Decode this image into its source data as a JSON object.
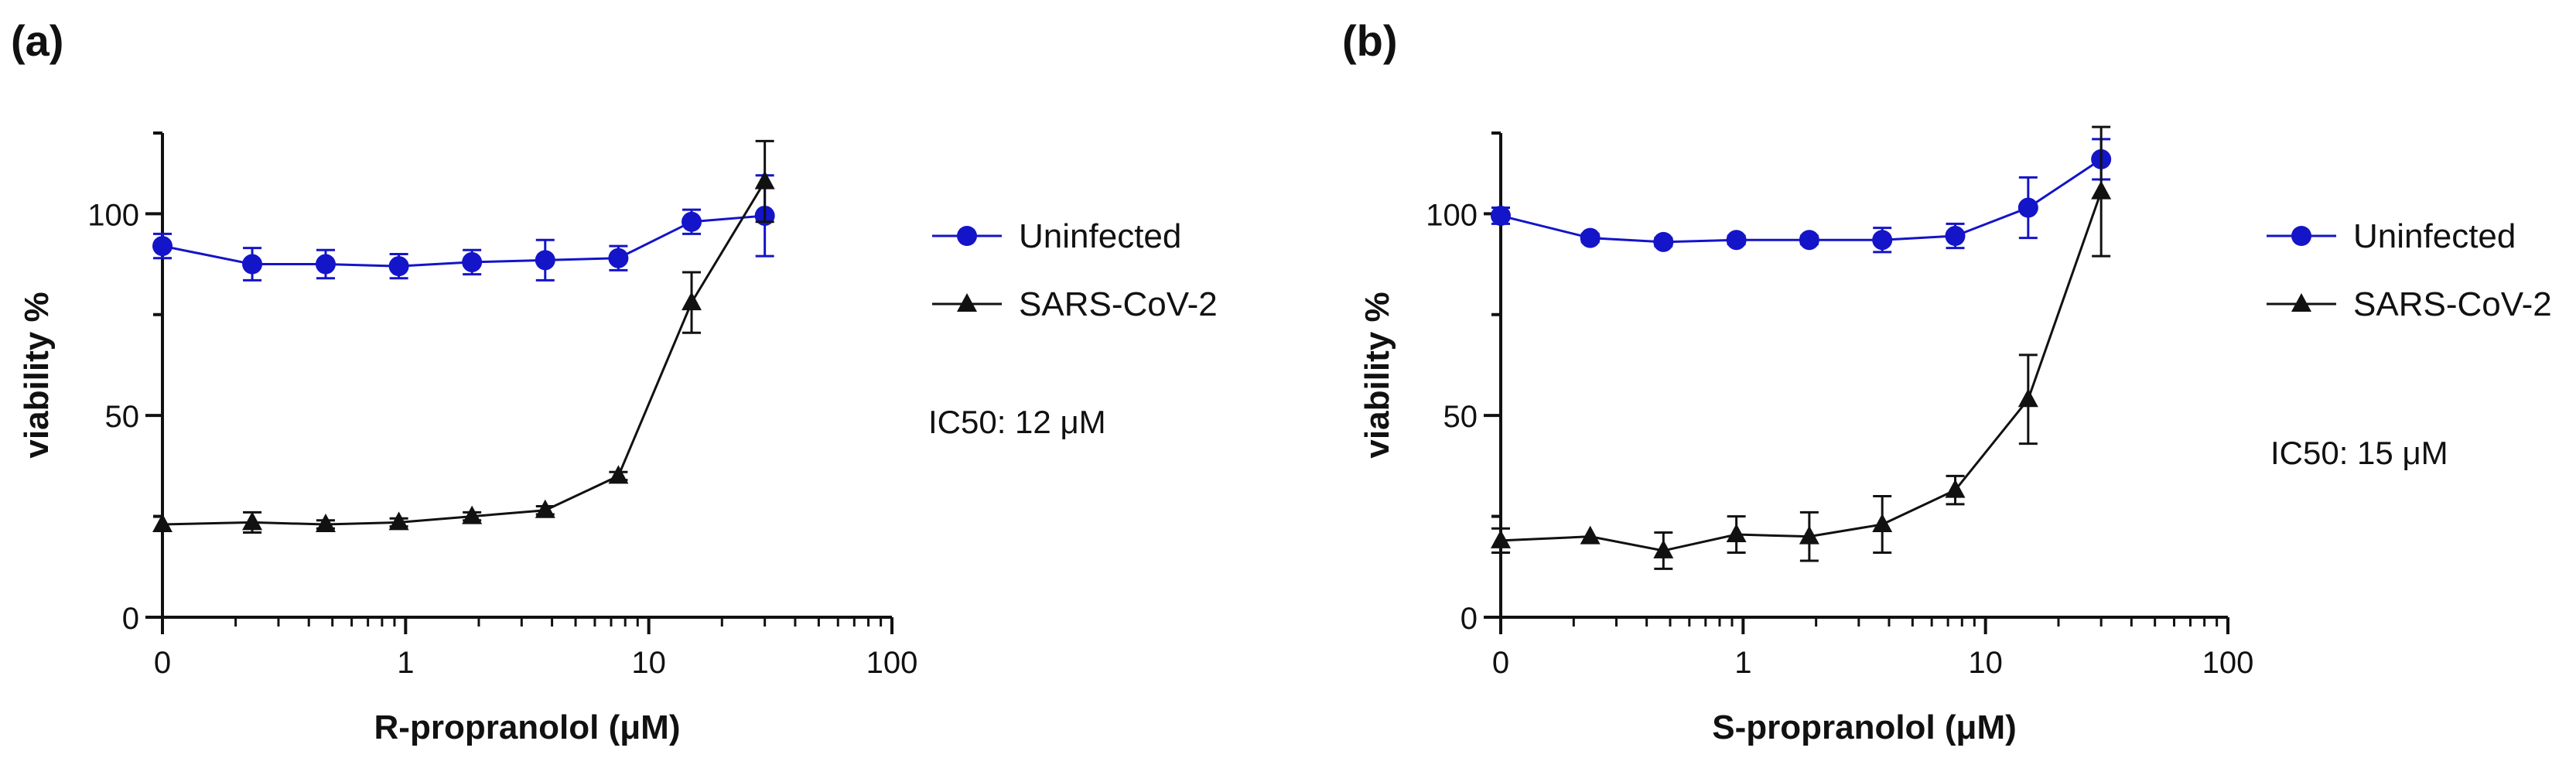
{
  "figure": {
    "panels": [
      "(a)",
      "(b)"
    ]
  },
  "chart_data": [
    {
      "panel_label": "(a)",
      "type": "line",
      "xlabel": "R-propranolol (μM)",
      "ylabel": "viability %",
      "x_ticks": [
        "0",
        "1",
        "10",
        "100"
      ],
      "y_ticks": [
        "0",
        "50",
        "100"
      ],
      "xlim_log10": [
        -1,
        2
      ],
      "ylim": [
        0,
        120
      ],
      "annotation": "IC50: 12 μM",
      "x": [
        0.1,
        0.234,
        0.469,
        0.938,
        1.875,
        3.75,
        7.5,
        15,
        30
      ],
      "series": [
        {
          "name": "Uninfected",
          "marker": "circle",
          "color": "#1414c8",
          "values": [
            92,
            87.5,
            87.5,
            87,
            88,
            88.5,
            89,
            98,
            99.5
          ],
          "errors": [
            3,
            4,
            3.5,
            3,
            3,
            5,
            3,
            3,
            10
          ]
        },
        {
          "name": "SARS-CoV-2",
          "marker": "triangle",
          "color": "#111111",
          "values": [
            23,
            23.5,
            23,
            23.5,
            25,
            26.5,
            35,
            78,
            108
          ],
          "errors": [
            0.5,
            2.5,
            1,
            1,
            1,
            1,
            1,
            7.5,
            10
          ]
        }
      ]
    },
    {
      "panel_label": "(b)",
      "type": "line",
      "xlabel": "S-propranolol (μM)",
      "ylabel": "viability %",
      "x_ticks": [
        "0",
        "1",
        "10",
        "100"
      ],
      "y_ticks": [
        "0",
        "50",
        "100"
      ],
      "xlim_log10": [
        -1,
        2
      ],
      "ylim": [
        0,
        120
      ],
      "annotation": "IC50: 15 μM",
      "x": [
        0.1,
        0.234,
        0.469,
        0.938,
        1.875,
        3.75,
        7.5,
        15,
        30
      ],
      "series": [
        {
          "name": "Uninfected",
          "marker": "circle",
          "color": "#1414c8",
          "values": [
            99.5,
            94,
            93,
            93.5,
            93.5,
            93.5,
            94.5,
            101.5,
            113.5
          ],
          "errors": [
            2,
            1,
            1,
            1,
            1,
            3,
            3,
            7.5,
            5
          ]
        },
        {
          "name": "SARS-CoV-2",
          "marker": "triangle",
          "color": "#111111",
          "values": [
            19,
            20,
            16.5,
            20.5,
            20,
            23,
            31.5,
            54,
            105.5
          ],
          "errors": [
            3,
            0.5,
            4.5,
            4.5,
            6,
            7,
            3.5,
            11,
            16
          ]
        }
      ]
    }
  ]
}
